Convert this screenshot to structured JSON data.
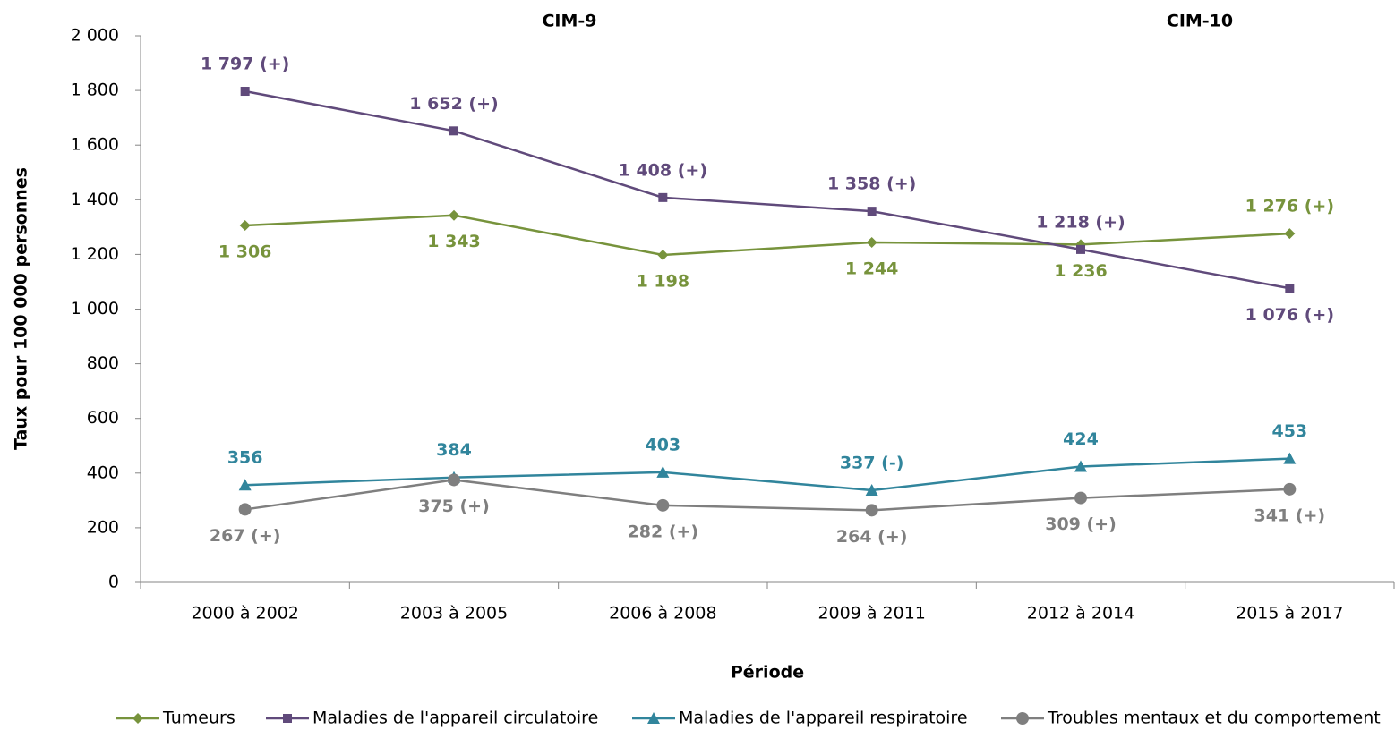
{
  "chart_data": {
    "type": "line",
    "x_label": "Période",
    "y_label": "Taux pour 100 000 personnes",
    "annotations": [
      "CIM-9",
      "CIM-10"
    ],
    "categories": [
      "2000 à 2002",
      "2003 à 2005",
      "2006 à 2008",
      "2009 à 2011",
      "2012 à 2014",
      "2015 à 2017"
    ],
    "ylim": [
      0,
      2000
    ],
    "yticks": [
      0,
      200,
      400,
      600,
      800,
      {
        "value": 1000,
        "label": "1 000"
      },
      {
        "value": 1200,
        "label": "1 200"
      },
      {
        "value": 1400,
        "label": "1 400"
      },
      {
        "value": 1600,
        "label": "1 600"
      },
      {
        "value": 1800,
        "label": "1 800"
      },
      {
        "value": 2000,
        "label": "2 000"
      }
    ],
    "legend": "bottom",
    "series": [
      {
        "name": "Tumeurs",
        "color": "#77933c",
        "marker": "diamond",
        "values": [
          1306,
          1343,
          1198,
          1244,
          1236,
          1276
        ],
        "value_labels": [
          "1 306",
          "1 343",
          "1 198",
          "1 244",
          "1 236",
          "1 276 (+)"
        ]
      },
      {
        "name": "Maladies de l'appareil circulatoire",
        "color": "#604a7b",
        "marker": "square",
        "values": [
          1797,
          1652,
          1408,
          1358,
          1218,
          1076
        ],
        "value_labels": [
          "1 797 (+)",
          "1 652 (+)",
          "1 408 (+)",
          "1 358 (+)",
          "1 218 (+)",
          "1 076 (+)"
        ]
      },
      {
        "name": "Maladies de l'appareil respiratoire",
        "color": "#31859c",
        "marker": "triangle",
        "values": [
          356,
          384,
          403,
          337,
          424,
          453
        ],
        "value_labels": [
          "356",
          "384",
          "403",
          "337 (-)",
          "424",
          "453"
        ]
      },
      {
        "name": "Troubles mentaux et du comportement",
        "color": "#7f7f7f",
        "marker": "circle",
        "values": [
          267,
          375,
          282,
          264,
          309,
          341
        ],
        "value_labels": [
          "267 (+)",
          "375 (+)",
          "282 (+)",
          "264 (+)",
          "309 (+)",
          "341 (+)"
        ]
      }
    ]
  }
}
